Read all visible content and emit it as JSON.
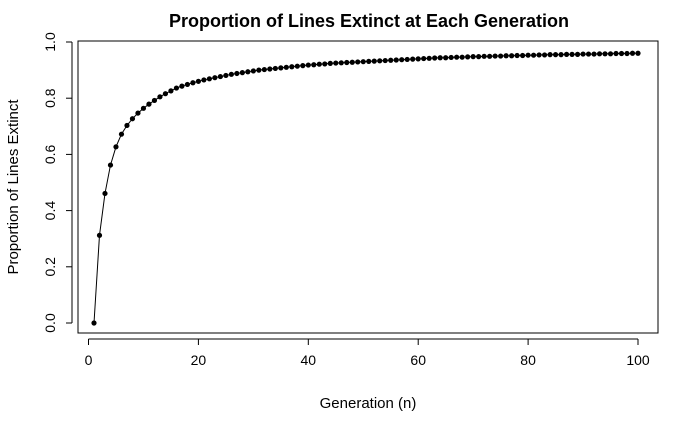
{
  "chart_data": {
    "type": "line",
    "title": "Proportion of Lines Extinct at Each Generation",
    "xlabel": "Generation (n)",
    "ylabel": "Proportion of Lines Extinct",
    "xlim": [
      1,
      100
    ],
    "ylim": [
      0,
      1
    ],
    "x_ticks": [
      0,
      20,
      40,
      60,
      80,
      100
    ],
    "y_ticks": [
      0.0,
      0.2,
      0.4,
      0.6,
      0.8,
      1.0
    ],
    "x_tick_labels": [
      "0",
      "20",
      "40",
      "60",
      "80",
      "100"
    ],
    "y_tick_labels": [
      "0.0",
      "0.2",
      "0.4",
      "0.6",
      "0.8",
      "1.0"
    ],
    "grid": false,
    "legend": "none",
    "series": [
      {
        "style": "points-and-lines",
        "color": "#000000",
        "x": [
          1,
          2,
          3,
          4,
          5,
          6,
          7,
          8,
          9,
          10,
          11,
          12,
          13,
          14,
          15,
          16,
          17,
          18,
          19,
          20,
          21,
          22,
          23,
          24,
          25,
          26,
          27,
          28,
          29,
          30,
          31,
          32,
          33,
          34,
          35,
          36,
          37,
          38,
          39,
          40,
          41,
          42,
          43,
          44,
          45,
          46,
          47,
          48,
          49,
          50,
          51,
          52,
          53,
          54,
          55,
          56,
          57,
          58,
          59,
          60,
          61,
          62,
          63,
          64,
          65,
          66,
          67,
          68,
          69,
          70,
          71,
          72,
          73,
          74,
          75,
          76,
          77,
          78,
          79,
          80,
          81,
          82,
          83,
          84,
          85,
          86,
          87,
          88,
          89,
          90,
          91,
          92,
          93,
          94,
          95,
          96,
          97,
          98,
          99,
          100
        ],
        "y": [
          0.0,
          0.312,
          0.461,
          0.562,
          0.627,
          0.672,
          0.703,
          0.727,
          0.747,
          0.764,
          0.779,
          0.792,
          0.805,
          0.816,
          0.826,
          0.836,
          0.843,
          0.849,
          0.855,
          0.86,
          0.865,
          0.869,
          0.873,
          0.877,
          0.881,
          0.885,
          0.888,
          0.891,
          0.894,
          0.897,
          0.9,
          0.902,
          0.904,
          0.906,
          0.908,
          0.91,
          0.912,
          0.914,
          0.916,
          0.918,
          0.919,
          0.921,
          0.922,
          0.924,
          0.925,
          0.926,
          0.927,
          0.928,
          0.929,
          0.93,
          0.931,
          0.932,
          0.933,
          0.934,
          0.935,
          0.936,
          0.937,
          0.938,
          0.939,
          0.94,
          0.941,
          0.942,
          0.943,
          0.944,
          0.944,
          0.945,
          0.946,
          0.946,
          0.947,
          0.948,
          0.948,
          0.949,
          0.949,
          0.95,
          0.95,
          0.951,
          0.951,
          0.952,
          0.952,
          0.953,
          0.953,
          0.954,
          0.954,
          0.955,
          0.955,
          0.955,
          0.956,
          0.956,
          0.956,
          0.957,
          0.957,
          0.957,
          0.958,
          0.958,
          0.958,
          0.959,
          0.959,
          0.959,
          0.96,
          0.96
        ]
      }
    ]
  }
}
